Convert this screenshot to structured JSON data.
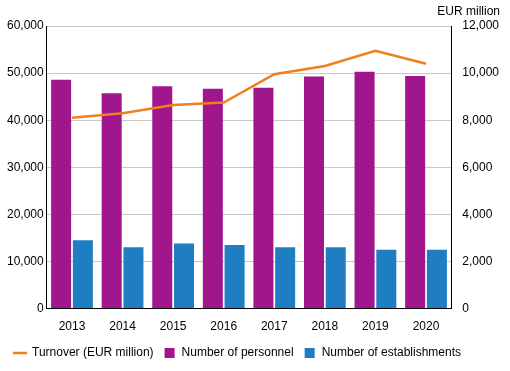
{
  "chart_data": {
    "type": "bar",
    "categories": [
      "2013",
      "2014",
      "2015",
      "2016",
      "2017",
      "2018",
      "2019",
      "2020"
    ],
    "series": [
      {
        "name": "Number of personnel",
        "type": "bar",
        "color": "#a0168c",
        "values": [
          48600,
          45700,
          47200,
          46700,
          46900,
          49300,
          50300,
          49400
        ]
      },
      {
        "name": "Number of establishments",
        "type": "bar",
        "color": "#1f7dc1",
        "values": [
          14500,
          13000,
          13800,
          13500,
          13000,
          13000,
          12500,
          12500
        ]
      },
      {
        "name": "Turnover (EUR million)",
        "type": "line",
        "color": "#f07f1e",
        "axis": "y2",
        "values": [
          8100,
          8300,
          8650,
          8750,
          9950,
          10300,
          10950,
          10400
        ]
      }
    ],
    "ylim": [
      0,
      60000
    ],
    "yticks": [
      0,
      {
        "value": 10000,
        "label": "10,000"
      },
      {
        "value": 20000,
        "label": "20,000"
      },
      {
        "value": 30000,
        "label": "30,000"
      },
      {
        "value": 40000,
        "label": "40,000"
      },
      {
        "value": 50000,
        "label": "50,000"
      },
      {
        "value": 60000,
        "label": "60,000"
      }
    ],
    "y2lim": [
      0,
      12000
    ],
    "y2ticks": [
      0,
      {
        "value": 2000,
        "label": "2,000"
      },
      {
        "value": 4000,
        "label": "4,000"
      },
      {
        "value": 6000,
        "label": "6,000"
      },
      {
        "value": 8000,
        "label": "8,000"
      },
      {
        "value": 10000,
        "label": "10,000"
      },
      {
        "value": 12000,
        "label": "12,000"
      }
    ],
    "y2_label": "EUR million",
    "legend": "bottom",
    "grid": true
  }
}
